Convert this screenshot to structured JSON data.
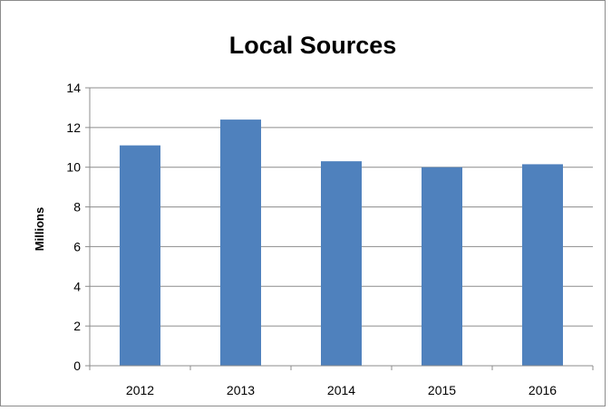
{
  "chart_data": {
    "type": "bar",
    "title": "Local Sources",
    "xlabel": "",
    "ylabel": "Millions",
    "categories": [
      "2012",
      "2013",
      "2014",
      "2015",
      "2016"
    ],
    "values": [
      11.1,
      12.4,
      10.3,
      10.0,
      10.15
    ],
    "ylim": [
      0,
      14
    ],
    "yticks": [
      0,
      2,
      4,
      6,
      8,
      10,
      12,
      14
    ],
    "grid": true,
    "legend": "none",
    "bar_color": "#4f81bd",
    "gridline_color": "#8c8c8c"
  }
}
